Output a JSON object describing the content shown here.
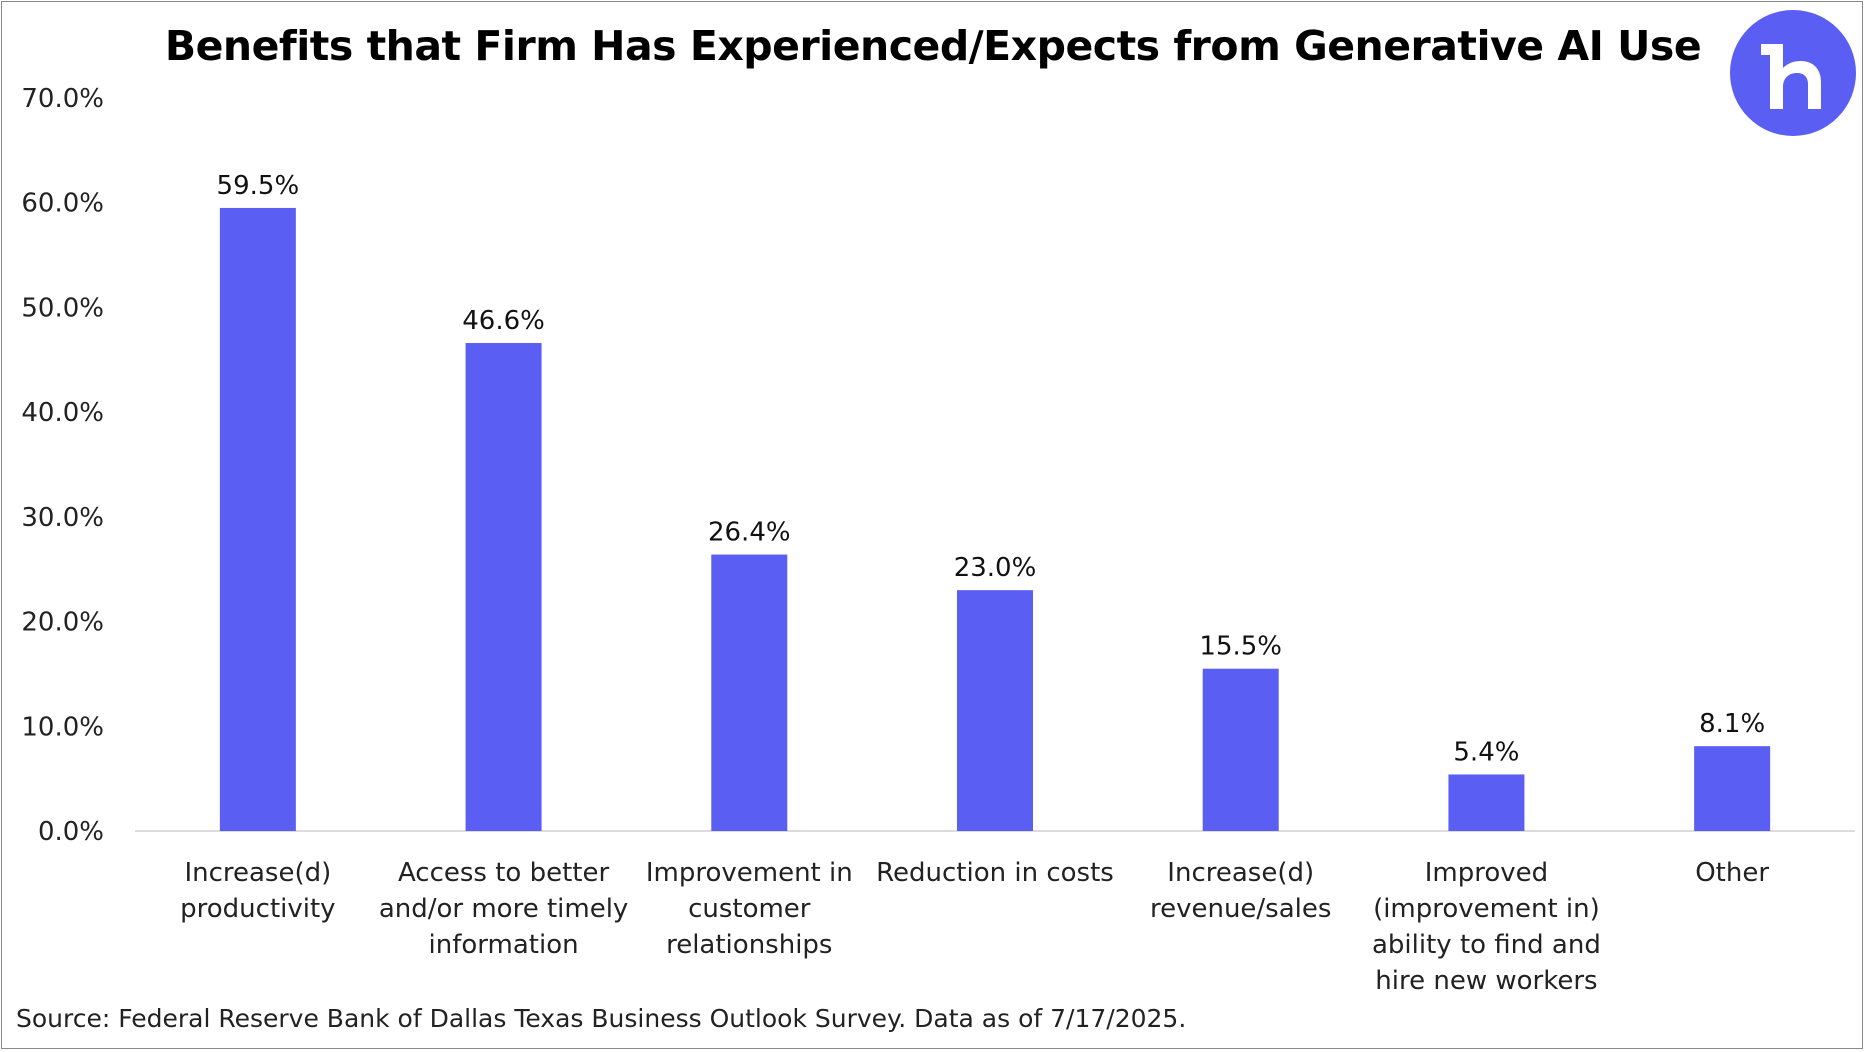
{
  "chart_data": {
    "type": "bar",
    "title": "Benefits that Firm Has Experienced/Expects from Generative AI Use",
    "xlabel": "",
    "ylabel": "",
    "ylim": [
      0,
      70
    ],
    "y_ticks": [
      "0.0%",
      "10.0%",
      "20.0%",
      "30.0%",
      "40.0%",
      "50.0%",
      "60.0%",
      "70.0%"
    ],
    "grid": false,
    "legend": "none",
    "bar_color": "#5b5ef2",
    "categories": [
      [
        "Increase(d)",
        "productivity"
      ],
      [
        "Access to better",
        "and/or more timely",
        "information"
      ],
      [
        "Improvement in",
        "customer",
        "relationships"
      ],
      [
        "Reduction in costs"
      ],
      [
        "Increase(d)",
        "revenue/sales"
      ],
      [
        "Improved",
        "(improvement in)",
        "ability to find and",
        "hire new workers"
      ],
      [
        "Other"
      ]
    ],
    "values": [
      59.5,
      46.6,
      26.4,
      23.0,
      15.5,
      5.4,
      8.1
    ],
    "data_labels": [
      "59.5%",
      "46.6%",
      "26.4%",
      "23.0%",
      "15.5%",
      "5.4%",
      "8.1%"
    ]
  },
  "source": "Source: Federal Reserve Bank of Dallas Texas Business Outlook Survey. Data as of 7/17/2025.",
  "logo": {
    "icon": "brand-logo-icon",
    "color": "#5b5ef2"
  }
}
